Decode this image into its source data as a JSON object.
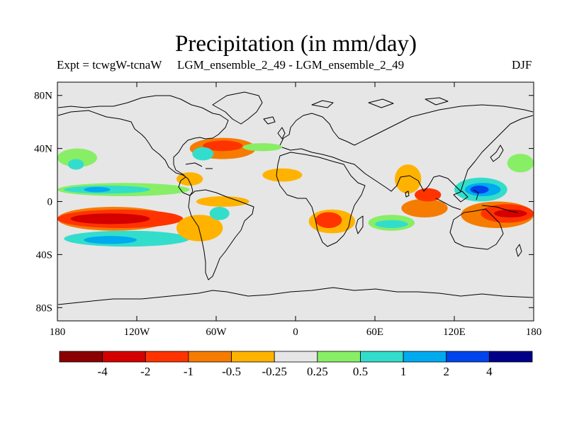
{
  "title": "Precipitation (in mm/day)",
  "subtitle_left": "Expt = tcwgW-tcnaW",
  "subtitle_center": "LGM_ensemble_2_49 - LGM_ensemble_2_49",
  "subtitle_right": "DJF",
  "map": {
    "background_color": "#e6e6e6",
    "lat_ticks": [
      {
        "lat": 80,
        "label": "80N"
      },
      {
        "lat": 40,
        "label": "40N"
      },
      {
        "lat": 0,
        "label": "0"
      },
      {
        "lat": -40,
        "label": "40S"
      },
      {
        "lat": -80,
        "label": "80S"
      }
    ],
    "lon_ticks": [
      {
        "lon": -180,
        "label": "180"
      },
      {
        "lon": -120,
        "label": "120W"
      },
      {
        "lon": -60,
        "label": "60W"
      },
      {
        "lon": 0,
        "label": "0"
      },
      {
        "lon": 60,
        "label": "60E"
      },
      {
        "lon": 120,
        "label": "120E"
      },
      {
        "lon": 180,
        "label": "180"
      }
    ]
  },
  "chart_data": {
    "type": "heatmap",
    "title": "Precipitation (in mm/day)",
    "season": "DJF",
    "xlim": [
      -180,
      180
    ],
    "ylim": [
      -90,
      90
    ],
    "colorbar": {
      "labels": [
        "-4",
        "-2",
        "-1",
        "-0.5",
        "-0.25",
        "0.25",
        "0.5",
        "1",
        "2",
        "4"
      ],
      "colors": [
        "#8b0000",
        "#d40000",
        "#ff3300",
        "#f57c00",
        "#ffb300",
        "#e6e6e6",
        "#88ee66",
        "#33ddcc",
        "#00aaee",
        "#0044ee",
        "#000088"
      ]
    },
    "regions": [
      {
        "lon0": -180,
        "lon1": -85,
        "lat0": -20,
        "lat1": -6,
        "color": "#ff3300"
      },
      {
        "lon0": -170,
        "lon1": -110,
        "lat0": -17,
        "lat1": -9,
        "color": "#d40000"
      },
      {
        "lon0": -180,
        "lon1": -95,
        "lat0": -22,
        "lat1": -4,
        "color": "#f57c00",
        "under": true
      },
      {
        "lon0": -175,
        "lon1": -80,
        "lat0": -34,
        "lat1": -22,
        "color": "#33ddcc"
      },
      {
        "lon0": -160,
        "lon1": -120,
        "lat0": -32,
        "lat1": -26,
        "color": "#00aaee"
      },
      {
        "lon0": -180,
        "lon1": -80,
        "lat0": 4,
        "lat1": 14,
        "color": "#88ee66"
      },
      {
        "lon0": -175,
        "lon1": -110,
        "lat0": 6,
        "lat1": 12,
        "color": "#33ddcc"
      },
      {
        "lon0": -160,
        "lon1": -140,
        "lat0": 7,
        "lat1": 11,
        "color": "#00aaee"
      },
      {
        "lon0": -180,
        "lon1": -150,
        "lat0": 26,
        "lat1": 40,
        "color": "#88ee66"
      },
      {
        "lon0": -172,
        "lon1": -160,
        "lat0": 24,
        "lat1": 32,
        "color": "#33ddcc"
      },
      {
        "lon0": -80,
        "lon1": -30,
        "lat0": 32,
        "lat1": 48,
        "color": "#f57c00"
      },
      {
        "lon0": -70,
        "lon1": -40,
        "lat0": 38,
        "lat1": 46,
        "color": "#ff3300"
      },
      {
        "lon0": -78,
        "lon1": -62,
        "lat0": 31,
        "lat1": 41,
        "color": "#33ddcc"
      },
      {
        "lon0": -40,
        "lon1": -10,
        "lat0": 38,
        "lat1": 44,
        "color": "#88ee66"
      },
      {
        "lon0": -90,
        "lon1": -70,
        "lat0": 12,
        "lat1": 22,
        "color": "#ffb300"
      },
      {
        "lon0": -90,
        "lon1": -55,
        "lat0": -30,
        "lat1": -10,
        "color": "#ffb300"
      },
      {
        "lon0": -75,
        "lon1": -35,
        "lat0": -4,
        "lat1": 4,
        "color": "#ffb300"
      },
      {
        "lon0": -65,
        "lon1": -50,
        "lat0": -14,
        "lat1": -4,
        "color": "#33ddcc"
      },
      {
        "lon0": -25,
        "lon1": 5,
        "lat0": 15,
        "lat1": 25,
        "color": "#ffb300"
      },
      {
        "lon0": 10,
        "lon1": 45,
        "lat0": -24,
        "lat1": -6,
        "color": "#ffb300"
      },
      {
        "lon0": 15,
        "lon1": 35,
        "lat0": -20,
        "lat1": -8,
        "color": "#ff3300"
      },
      {
        "lon0": 55,
        "lon1": 90,
        "lat0": -22,
        "lat1": -10,
        "color": "#88ee66"
      },
      {
        "lon0": 60,
        "lon1": 85,
        "lat0": -20,
        "lat1": -14,
        "color": "#33ddcc"
      },
      {
        "lon0": 80,
        "lon1": 115,
        "lat0": -12,
        "lat1": 2,
        "color": "#f57c00"
      },
      {
        "lon0": 125,
        "lon1": 180,
        "lat0": -20,
        "lat1": 0,
        "color": "#f57c00"
      },
      {
        "lon0": 140,
        "lon1": 180,
        "lat0": -16,
        "lat1": -2,
        "color": "#ff3300"
      },
      {
        "lon0": 150,
        "lon1": 175,
        "lat0": -12,
        "lat1": -6,
        "color": "#d40000"
      },
      {
        "lon0": 120,
        "lon1": 160,
        "lat0": 0,
        "lat1": 18,
        "color": "#33ddcc"
      },
      {
        "lon0": 128,
        "lon1": 155,
        "lat0": 4,
        "lat1": 14,
        "color": "#00aaee"
      },
      {
        "lon0": 132,
        "lon1": 146,
        "lat0": 6,
        "lat1": 12,
        "color": "#0044ee"
      },
      {
        "lon0": 160,
        "lon1": 180,
        "lat0": 22,
        "lat1": 36,
        "color": "#88ee66"
      },
      {
        "lon0": 75,
        "lon1": 95,
        "lat0": 6,
        "lat1": 28,
        "color": "#ffb300"
      },
      {
        "lon0": 90,
        "lon1": 110,
        "lat0": 0,
        "lat1": 10,
        "color": "#ff3300"
      }
    ]
  }
}
